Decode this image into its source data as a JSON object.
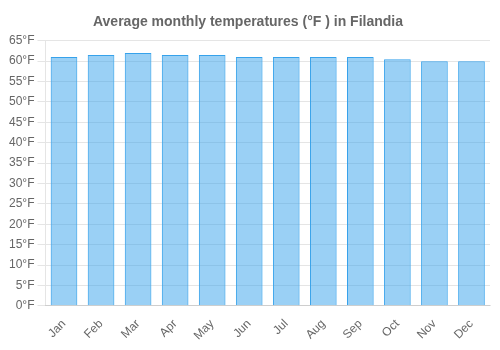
{
  "chart_data": {
    "type": "bar",
    "title": "Average monthly temperatures (°F ) in Filandia",
    "categories": [
      "Jan",
      "Feb",
      "Mar",
      "Apr",
      "May",
      "Jun",
      "Jul",
      "Aug",
      "Sep",
      "Oct",
      "Nov",
      "Dec"
    ],
    "values": [
      61,
      61.5,
      62,
      61.5,
      61.5,
      61,
      61,
      61,
      61,
      60.5,
      60,
      60
    ],
    "ylim": [
      0,
      65
    ],
    "yticks": [
      {
        "value": 0,
        "label": "0°F"
      },
      {
        "value": 5,
        "label": "5°F"
      },
      {
        "value": 10,
        "label": "10°F"
      },
      {
        "value": 15,
        "label": "15°F"
      },
      {
        "value": 20,
        "label": "20°F"
      },
      {
        "value": 25,
        "label": "25°F"
      },
      {
        "value": 30,
        "label": "30°F"
      },
      {
        "value": 35,
        "label": "35°F"
      },
      {
        "value": 40,
        "label": "40°F"
      },
      {
        "value": 45,
        "label": "45°F"
      },
      {
        "value": 50,
        "label": "50°F"
      },
      {
        "value": 55,
        "label": "55°F"
      },
      {
        "value": 60,
        "label": "60°F"
      },
      {
        "value": 65,
        "label": "65°F"
      }
    ],
    "grid": true
  }
}
